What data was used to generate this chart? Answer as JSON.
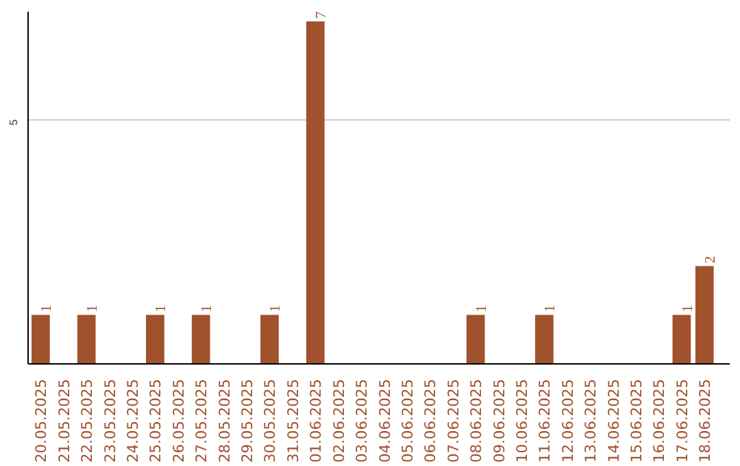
{
  "chart_data": {
    "type": "bar",
    "categories": [
      "20.05.2025",
      "21.05.2025",
      "22.05.2025",
      "23.05.2025",
      "24.05.2025",
      "25.05.2025",
      "26.05.2025",
      "27.05.2025",
      "28.05.2025",
      "29.05.2025",
      "30.05.2025",
      "31.05.2025",
      "01.06.2025",
      "02.06.2025",
      "03.06.2025",
      "04.06.2025",
      "05.06.2025",
      "06.06.2025",
      "07.06.2025",
      "08.06.2025",
      "09.06.2025",
      "10.06.2025",
      "11.06.2025",
      "12.06.2025",
      "13.06.2025",
      "14.06.2025",
      "15.06.2025",
      "16.06.2025",
      "17.06.2025",
      "18.06.2025"
    ],
    "values": [
      1,
      0,
      1,
      0,
      0,
      1,
      0,
      1,
      0,
      0,
      1,
      0,
      7,
      0,
      0,
      0,
      0,
      0,
      0,
      1,
      0,
      0,
      1,
      0,
      0,
      0,
      0,
      0,
      1,
      2
    ],
    "value_labels": [
      "1",
      null,
      "1",
      null,
      null,
      "1",
      null,
      "1",
      null,
      null,
      "1",
      null,
      "7",
      null,
      null,
      null,
      null,
      null,
      null,
      "1",
      null,
      null,
      "1",
      null,
      null,
      null,
      null,
      null,
      "1",
      "2"
    ],
    "color": "#a0522d",
    "ylim": [
      0,
      7.2
    ],
    "yticks": [
      5
    ],
    "grid": "y"
  }
}
